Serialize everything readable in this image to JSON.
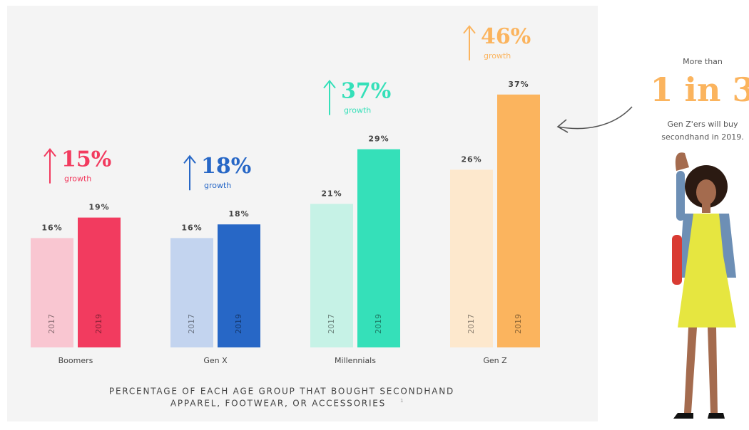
{
  "chart_data": {
    "type": "bar",
    "title_lines": [
      "PERCENTAGE OF EACH AGE GROUP THAT BOUGHT SECONDHAND",
      "APPAREL, FOOTWEAR, OR ACCESSORIES"
    ],
    "footnote": "1",
    "categories": [
      "Boomers",
      "Gen X",
      "Millennials",
      "Gen Z"
    ],
    "series": [
      {
        "name": "2017",
        "values": [
          16,
          16,
          21,
          26
        ],
        "value_labels": [
          "16%",
          "16%",
          "21%",
          "26%"
        ],
        "colors": [
          "#f9c6d1",
          "#c3d4ef",
          "#c6f2e6",
          "#fde8cd"
        ]
      },
      {
        "name": "2019",
        "values": [
          19,
          18,
          29,
          37
        ],
        "value_labels": [
          "19%",
          "18%",
          "29%",
          "37%"
        ],
        "colors": [
          "#f23b5f",
          "#2767c6",
          "#35e0b9",
          "#fbb45e"
        ]
      }
    ],
    "growth_labels": [
      "15%",
      "18%",
      "37%",
      "46%"
    ],
    "growth_word": "growth",
    "callout": {
      "lead": "More than",
      "headline": "1 in 3",
      "lines": [
        "Gen Z'ers will buy",
        "secondhand in 2019."
      ]
    }
  }
}
